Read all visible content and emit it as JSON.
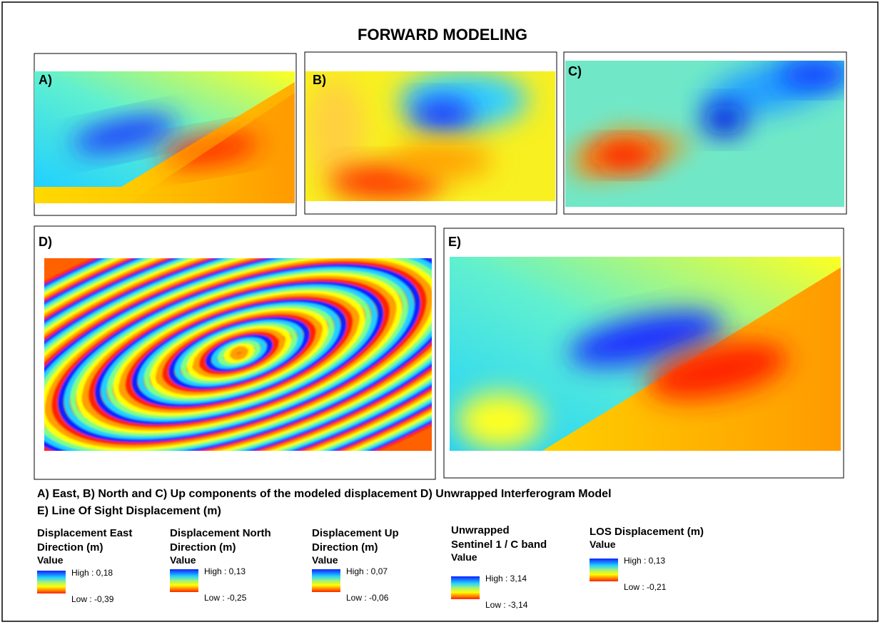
{
  "title": "FORWARD MODELING",
  "panels": [
    {
      "label": "A)"
    },
    {
      "label": "B)"
    },
    {
      "label": "C)"
    },
    {
      "label": "D)"
    },
    {
      "label": "E)"
    }
  ],
  "caption": [
    "A) East,  B) North and  C) Up components of the modeled displacement D) Unwrapped Interferogram Model",
    "E) Line Of Sight Displacement (m)"
  ],
  "legends": [
    {
      "title": [
        "Displacement East",
        "Direction (m)"
      ],
      "subtitle": "Value",
      "high": "High : 0,18",
      "low": "Low : -0,39"
    },
    {
      "title": [
        "Displacement North",
        "Direction (m)"
      ],
      "subtitle": "Value",
      "high": "High : 0,13",
      "low": "Low : -0,25"
    },
    {
      "title": [
        "Displacement Up",
        "Direction (m)"
      ],
      "subtitle": "Value",
      "high": "High : 0,07",
      "low": "Low : -0,06"
    },
    {
      "title": [
        "Unwrapped",
        "Sentinel 1 / C band"
      ],
      "subtitle": "Value",
      "high": "High : 3,14",
      "low": "Low : -3,14"
    },
    {
      "title": [
        "LOS Displacement (m)"
      ],
      "subtitle": "Value",
      "high": "High : 0,13",
      "low": "Low : -0,21"
    }
  ]
}
